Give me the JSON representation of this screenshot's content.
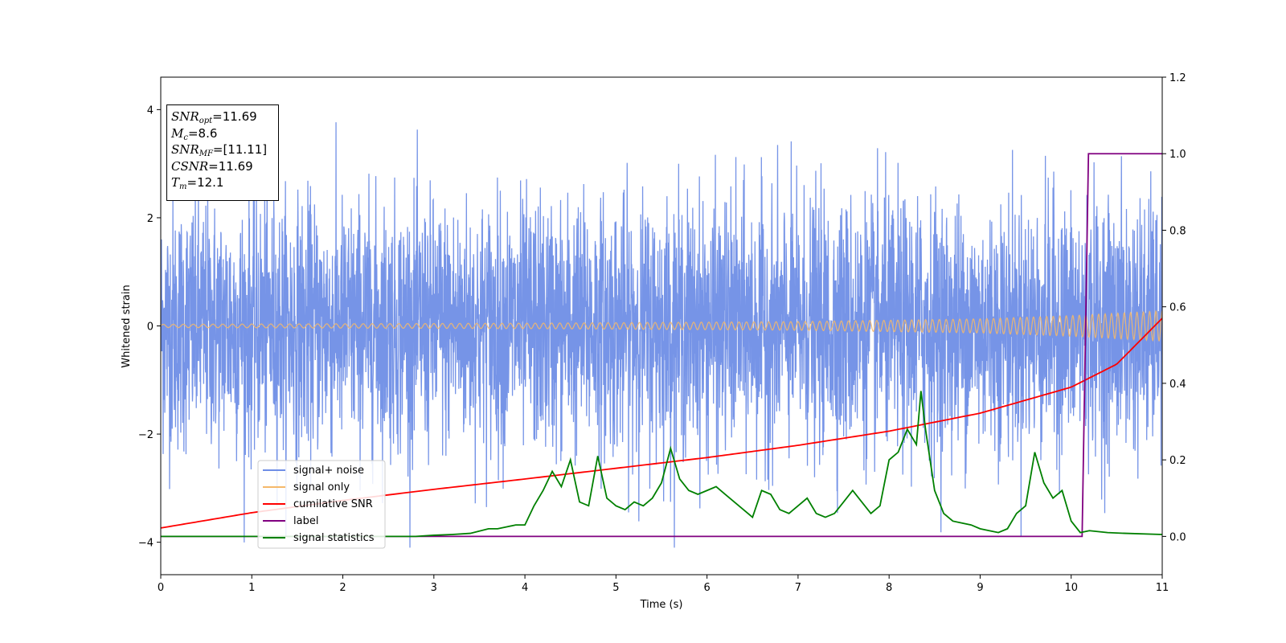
{
  "chart_data": {
    "type": "line",
    "xlabel": "Time (s)",
    "ylabel": "Whitened strain",
    "xlim": [
      0,
      11
    ],
    "ylim_left": [
      -4.6,
      4.6
    ],
    "ylim_right": [
      -0.1,
      1.2
    ],
    "x_ticks": [
      "0",
      "1",
      "2",
      "3",
      "4",
      "5",
      "6",
      "7",
      "8",
      "9",
      "10",
      "11"
    ],
    "y_ticks_left": [
      "−4",
      "−2",
      "0",
      "2",
      "4"
    ],
    "y_ticks_right": [
      "0.0",
      "0.2",
      "0.4",
      "0.6",
      "0.8",
      "1.0",
      "1.2"
    ],
    "legend_position": "lower-left",
    "colors": {
      "signal_noise": "#6f8ee6",
      "signal_only": "#f5b86a",
      "cumulative_snr": "#ff0000",
      "label": "#800080",
      "signal_statistics": "#008000"
    },
    "series": [
      {
        "name": "signal+ noise",
        "axis": "left",
        "description": "dense noise trace",
        "approx_range": [
          -4.1,
          4.1
        ]
      },
      {
        "name": "signal only",
        "axis": "left",
        "amplitude_envelope": {
          "x": [
            0,
            4,
            7,
            9,
            10,
            11
          ],
          "amp": [
            0.03,
            0.05,
            0.08,
            0.13,
            0.19,
            0.28
          ]
        }
      },
      {
        "name": "cumilative SNR",
        "axis": "right",
        "x": [
          0,
          1,
          2,
          3,
          4,
          5,
          6,
          7,
          8,
          9,
          10,
          10.5,
          11
        ],
        "y": [
          0.022,
          0.062,
          0.094,
          0.123,
          0.15,
          0.178,
          0.206,
          0.238,
          0.275,
          0.322,
          0.39,
          0.45,
          0.57
        ]
      },
      {
        "name": "label",
        "axis": "right",
        "x": [
          0,
          10.12,
          10.19,
          11
        ],
        "y": [
          0,
          0,
          1,
          1
        ]
      },
      {
        "name": "signal statistics",
        "axis": "right",
        "x": [
          0,
          1,
          2,
          2.8,
          3.0,
          3.2,
          3.4,
          3.6,
          3.7,
          3.8,
          3.9,
          4.0,
          4.1,
          4.2,
          4.3,
          4.4,
          4.5,
          4.6,
          4.7,
          4.8,
          4.9,
          5.0,
          5.1,
          5.2,
          5.3,
          5.4,
          5.5,
          5.6,
          5.7,
          5.8,
          5.9,
          6.0,
          6.1,
          6.2,
          6.3,
          6.4,
          6.5,
          6.6,
          6.7,
          6.8,
          6.9,
          7.0,
          7.1,
          7.2,
          7.3,
          7.4,
          7.5,
          7.6,
          7.7,
          7.8,
          7.9,
          8.0,
          8.1,
          8.2,
          8.3,
          8.35,
          8.4,
          8.5,
          8.6,
          8.7,
          8.8,
          8.9,
          9.0,
          9.1,
          9.2,
          9.3,
          9.4,
          9.5,
          9.6,
          9.7,
          9.8,
          9.9,
          10.0,
          10.1,
          10.2,
          10.4,
          10.6,
          11
        ],
        "y": [
          0.0,
          0.0,
          0.0,
          0.0,
          0.003,
          0.005,
          0.008,
          0.02,
          0.02,
          0.025,
          0.03,
          0.03,
          0.08,
          0.12,
          0.17,
          0.13,
          0.2,
          0.09,
          0.08,
          0.21,
          0.1,
          0.08,
          0.07,
          0.09,
          0.08,
          0.1,
          0.14,
          0.23,
          0.15,
          0.12,
          0.11,
          0.12,
          0.13,
          0.11,
          0.09,
          0.07,
          0.05,
          0.12,
          0.11,
          0.07,
          0.06,
          0.08,
          0.1,
          0.06,
          0.05,
          0.06,
          0.09,
          0.12,
          0.09,
          0.06,
          0.08,
          0.2,
          0.22,
          0.28,
          0.24,
          0.38,
          0.28,
          0.12,
          0.06,
          0.04,
          0.035,
          0.03,
          0.02,
          0.015,
          0.01,
          0.02,
          0.06,
          0.08,
          0.22,
          0.14,
          0.1,
          0.12,
          0.04,
          0.01,
          0.015,
          0.01,
          0.008,
          0.005
        ]
      }
    ]
  },
  "info_box": {
    "snr_opt": "=11.69",
    "mc": "=8.6",
    "snr_mf": "=[11.11]",
    "csnr": "=11.69",
    "tm": "=12.1"
  },
  "legend": {
    "items": [
      "signal+ noise",
      "signal only",
      "cumilative SNR",
      "label",
      "signal statistics"
    ]
  }
}
